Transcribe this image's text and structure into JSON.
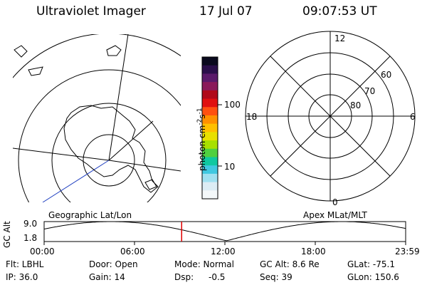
{
  "header": {
    "instrument": "Ultraviolet Imager",
    "date": "17 Jul 07",
    "time": "09:07:53 UT"
  },
  "geo_map": {
    "label": "Geographic Lat/Lon"
  },
  "apex_map": {
    "label": "Apex MLat/MLT",
    "mlt_labels": [
      "12",
      "18",
      "6",
      "0"
    ],
    "lat_labels": [
      "60",
      "70",
      "80"
    ]
  },
  "colorbar": {
    "unit_label": "photon cm",
    "unit_exp1": "-2",
    "unit_s": "s",
    "unit_exp2": "-1",
    "tick_labels": [
      "100",
      "10"
    ],
    "colors": [
      "#0a0a1e",
      "#2a0f4a",
      "#5a1a6a",
      "#8a1a5a",
      "#b00a1a",
      "#e01010",
      "#ff5010",
      "#ff9000",
      "#ffc000",
      "#e8e000",
      "#a8e000",
      "#50d040",
      "#10c8a0",
      "#40c8e0",
      "#a0e0f0",
      "#dcecf4",
      "#f4f8fa"
    ]
  },
  "altitude_plot": {
    "ylabel": "GC Alt",
    "ytick_top": "9.0",
    "ytick_bottom": "1.8",
    "x_ticks": [
      "00:00",
      "06:00",
      "12:00",
      "18:00",
      "23:59"
    ],
    "current_hour": 9.13
  },
  "info": {
    "flt": "Flt: LBHL",
    "ip": "IP: 36.0",
    "door": "Door: Open",
    "gain": "Gain: 14",
    "mode": "Mode: Normal",
    "dsp_label": "Dsp:",
    "dsp_value": "-0.5",
    "gc_alt": "GC Alt: 8.6 Re",
    "seq": "Seq: 39",
    "glat": "GLat: -75.1",
    "glon": "GLon: 150.6"
  }
}
